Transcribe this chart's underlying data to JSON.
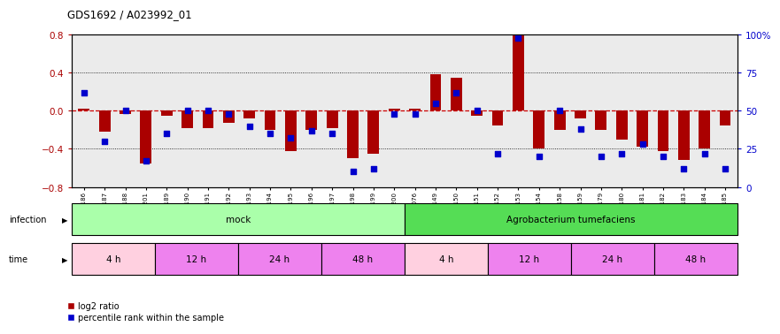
{
  "title": "GDS1692 / A023992_01",
  "samples": [
    "GSM94186",
    "GSM94187",
    "GSM94188",
    "GSM94201",
    "GSM94189",
    "GSM94190",
    "GSM94191",
    "GSM94192",
    "GSM94193",
    "GSM94194",
    "GSM94195",
    "GSM94196",
    "GSM94197",
    "GSM94198",
    "GSM94199",
    "GSM94200",
    "GSM94076",
    "GSM94149",
    "GSM94150",
    "GSM94151",
    "GSM94152",
    "GSM94153",
    "GSM94154",
    "GSM94158",
    "GSM94159",
    "GSM94179",
    "GSM94180",
    "GSM94181",
    "GSM94182",
    "GSM94183",
    "GSM94184",
    "GSM94185"
  ],
  "log2_ratio": [
    0.02,
    -0.22,
    -0.03,
    -0.55,
    -0.05,
    -0.18,
    -0.18,
    -0.13,
    -0.08,
    -0.2,
    -0.42,
    -0.2,
    -0.18,
    -0.5,
    -0.45,
    0.02,
    0.02,
    0.38,
    0.35,
    -0.05,
    -0.15,
    0.8,
    -0.4,
    -0.2,
    -0.08,
    -0.2,
    -0.3,
    -0.38,
    -0.42,
    -0.52,
    -0.4,
    -0.15
  ],
  "percentile": [
    62,
    30,
    50,
    17,
    35,
    50,
    50,
    48,
    40,
    35,
    32,
    37,
    35,
    10,
    12,
    48,
    48,
    55,
    62,
    50,
    22,
    98,
    20,
    50,
    38,
    20,
    22,
    28,
    20,
    12,
    22,
    12
  ],
  "bar_color": "#AA0000",
  "dot_color": "#0000CC",
  "ylim": [
    -0.8,
    0.8
  ],
  "y2lim": [
    0,
    100
  ],
  "yticks_left": [
    -0.8,
    -0.4,
    0.0,
    0.4,
    0.8
  ],
  "yticks_right": [
    0,
    25,
    50,
    75,
    100
  ],
  "hline_color": "#CC0000",
  "plot_bg": "#EBEBEB",
  "infection_blocks": [
    {
      "label": "mock",
      "start": 0,
      "end": 16,
      "color": "#AAFFAA"
    },
    {
      "label": "Agrobacterium tumefaciens",
      "start": 16,
      "end": 32,
      "color": "#55DD55"
    }
  ],
  "time_blocks": [
    {
      "label": "4 h",
      "start": 0,
      "end": 4,
      "color": "#FFD0E0"
    },
    {
      "label": "12 h",
      "start": 4,
      "end": 8,
      "color": "#EE82EE"
    },
    {
      "label": "24 h",
      "start": 8,
      "end": 12,
      "color": "#EE82EE"
    },
    {
      "label": "48 h",
      "start": 12,
      "end": 16,
      "color": "#EE82EE"
    },
    {
      "label": "4 h",
      "start": 16,
      "end": 20,
      "color": "#FFD0E0"
    },
    {
      "label": "12 h",
      "start": 20,
      "end": 24,
      "color": "#EE82EE"
    },
    {
      "label": "24 h",
      "start": 24,
      "end": 28,
      "color": "#EE82EE"
    },
    {
      "label": "48 h",
      "start": 28,
      "end": 32,
      "color": "#EE82EE"
    }
  ]
}
